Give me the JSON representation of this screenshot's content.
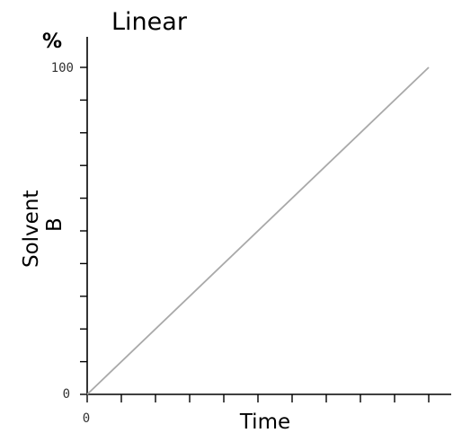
{
  "chart_data": {
    "type": "line",
    "title": "Linear",
    "y_unit": "%",
    "xlabel": "Time",
    "ylabel_lines": [
      "Solvent",
      "B"
    ],
    "x": [
      0,
      1
    ],
    "series": [
      {
        "values": [
          0,
          100
        ]
      }
    ],
    "xlim": [
      0,
      1
    ],
    "ylim": [
      0,
      100
    ],
    "x_tick_labels": [
      "0"
    ],
    "y_tick_labels": [
      "0",
      "100"
    ],
    "grid": false,
    "line_color": "#a9a9a9"
  }
}
